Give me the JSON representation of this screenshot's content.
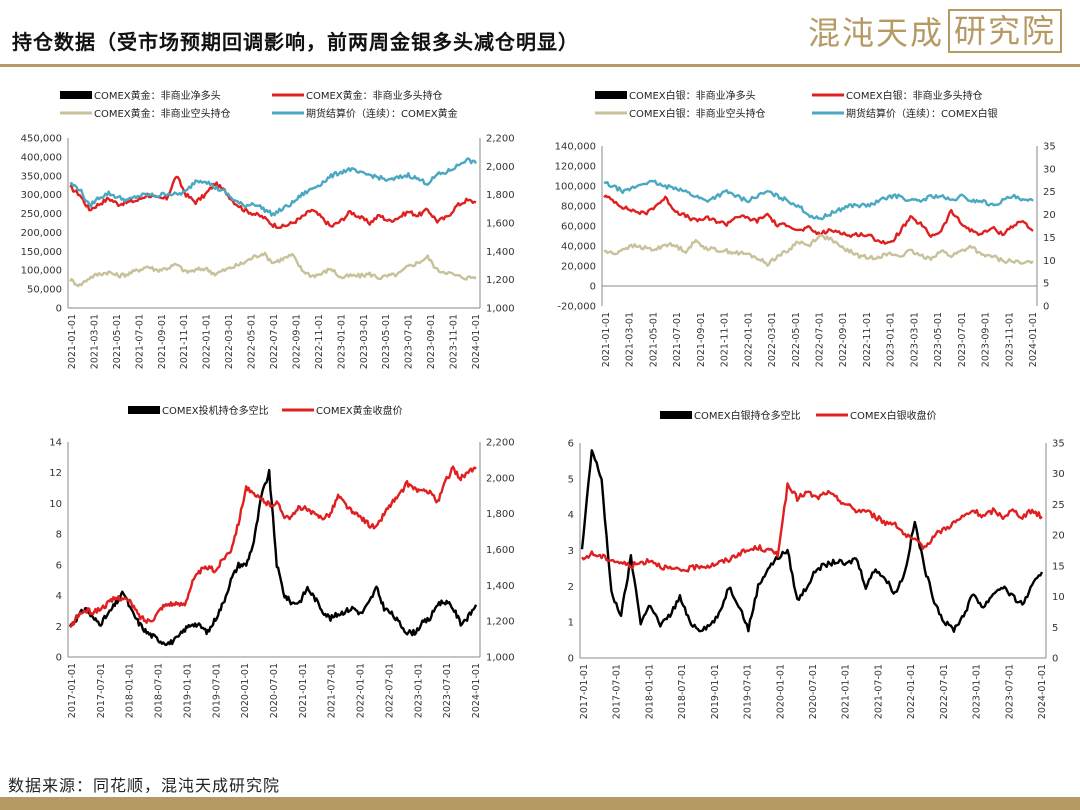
{
  "page": {
    "title": "持仓数据（受市场预期回调影响，前两周金银多头减仓明显）",
    "logo_part1": "混沌天成",
    "logo_part2": "研究院",
    "source": "数据来源：同花顺，混沌天成研究院",
    "accent_color": "#b59a63"
  },
  "chart_data": [
    {
      "type": "line",
      "legend": [
        "COMEX黄金：非商业净多头",
        "COMEX黄金：非商业多头持仓",
        "COMEX黄金：非商业空头持仓",
        "期货结算价（连续）：COMEX黄金"
      ],
      "colors": [
        "#000000",
        "#e02020",
        "#c8c29a",
        "#4aa8c0"
      ],
      "x_ticks": [
        "2021-01-01",
        "2021-03-01",
        "2021-05-01",
        "2021-07-01",
        "2021-09-01",
        "2021-11-01",
        "2022-01-01",
        "2022-03-01",
        "2022-05-01",
        "2022-07-01",
        "2022-09-01",
        "2022-11-01",
        "2023-01-01",
        "2023-03-01",
        "2023-05-01",
        "2023-07-01",
        "2023-09-01",
        "2023-11-01",
        "2024-01-01"
      ],
      "y_left": {
        "min": 0,
        "max": 450000,
        "ticks": [
          "0",
          "50,000",
          "100,000",
          "150,000",
          "200,000",
          "250,000",
          "300,000",
          "350,000",
          "400,000",
          "450,000"
        ]
      },
      "y_right": {
        "min": 1000,
        "max": 2200,
        "ticks": [
          "1,000",
          "1,200",
          "1,400",
          "1,600",
          "1,800",
          "2,000",
          "2,200"
        ]
      },
      "series": [
        {
          "name": "COMEX黄金：非商业多头持仓",
          "axis": "left",
          "values": [
            320000,
            300000,
            260000,
            275000,
            290000,
            275000,
            280000,
            285000,
            300000,
            290000,
            290000,
            350000,
            300000,
            280000,
            300000,
            330000,
            310000,
            280000,
            260000,
            250000,
            240000,
            220000,
            215000,
            225000,
            240000,
            260000,
            240000,
            215000,
            230000,
            255000,
            240000,
            225000,
            245000,
            230000,
            240000,
            255000,
            245000,
            260000,
            230000,
            240000,
            270000,
            285000,
            280000
          ]
        },
        {
          "name": "COMEX黄金：非商业空头持仓",
          "axis": "left",
          "values": [
            75000,
            60000,
            80000,
            90000,
            95000,
            85000,
            90000,
            100000,
            110000,
            100000,
            105000,
            115000,
            95000,
            100000,
            105000,
            90000,
            100000,
            110000,
            120000,
            135000,
            145000,
            120000,
            130000,
            140000,
            100000,
            85000,
            90000,
            105000,
            80000,
            85000,
            85000,
            90000,
            80000,
            85000,
            90000,
            110000,
            120000,
            135000,
            100000,
            95000,
            85000,
            80000,
            82000
          ]
        },
        {
          "name": "期货结算价（连续）：COMEX黄金",
          "axis": "right",
          "values": [
            1880,
            1840,
            1720,
            1780,
            1810,
            1780,
            1760,
            1790,
            1800,
            1790,
            1810,
            1800,
            1820,
            1900,
            1900,
            1850,
            1820,
            1760,
            1720,
            1740,
            1700,
            1660,
            1700,
            1740,
            1800,
            1840,
            1880,
            1930,
            1960,
            1980,
            1950,
            1940,
            1920,
            1900,
            1920,
            1940,
            1910,
            1880,
            1940,
            1960,
            2000,
            2050,
            2020
          ]
        }
      ]
    },
    {
      "type": "line",
      "legend": [
        "COMEX白银：非商业净多头",
        "COMEX白银：非商业多头持仓",
        "COMEX白银：非商业空头持仓",
        "期货结算价（连续）：COMEX白银"
      ],
      "colors": [
        "#000000",
        "#e02020",
        "#c8c29a",
        "#4aa8c0"
      ],
      "x_ticks": [
        "2021-01-01",
        "2021-03-01",
        "2021-05-01",
        "2021-07-01",
        "2021-09-01",
        "2021-11-01",
        "2022-01-01",
        "2022-03-01",
        "2022-05-01",
        "2022-07-01",
        "2022-09-01",
        "2022-11-01",
        "2023-01-01",
        "2023-03-01",
        "2023-05-01",
        "2023-07-01",
        "2023-09-01",
        "2023-11-01",
        "2024-01-01"
      ],
      "y_left": {
        "min": -20000,
        "max": 140000,
        "ticks": [
          "-20,000",
          "0",
          "20,000",
          "40,000",
          "60,000",
          "80,000",
          "100,000",
          "120,000",
          "140,000"
        ]
      },
      "y_right": {
        "min": 0,
        "max": 35,
        "ticks": [
          "0",
          "5",
          "10",
          "15",
          "20",
          "25",
          "30",
          "35"
        ]
      },
      "series": [
        {
          "name": "COMEX白银：非商业多头持仓",
          "axis": "left",
          "values": [
            90000,
            85000,
            78000,
            75000,
            72000,
            80000,
            88000,
            75000,
            70000,
            65000,
            68000,
            65000,
            62000,
            70000,
            68000,
            65000,
            72000,
            60000,
            62000,
            55000,
            58000,
            52000,
            55000,
            55000,
            50000,
            52000,
            50000,
            45000,
            42000,
            55000,
            68000,
            62000,
            50000,
            55000,
            75000,
            62000,
            55000,
            52000,
            58000,
            52000,
            60000,
            65000,
            55000
          ]
        },
        {
          "name": "COMEX白银：非商业空头持仓",
          "axis": "left",
          "values": [
            35000,
            32000,
            38000,
            40000,
            38000,
            36000,
            42000,
            40000,
            35000,
            45000,
            38000,
            36000,
            35000,
            33000,
            32000,
            28000,
            22000,
            30000,
            35000,
            45000,
            40000,
            50000,
            48000,
            40000,
            35000,
            30000,
            28000,
            30000,
            32000,
            30000,
            35000,
            30000,
            28000,
            35000,
            30000,
            35000,
            40000,
            30000,
            30000,
            25000,
            25000,
            22000,
            25000
          ]
        },
        {
          "name": "期货结算价（连续）：COMEX白银",
          "axis": "right",
          "values": [
            27,
            26,
            25,
            26,
            27,
            27,
            26,
            26,
            25,
            24,
            23,
            24,
            25,
            24,
            23,
            24,
            25,
            24,
            23,
            22,
            20,
            19,
            20,
            21,
            22,
            22,
            22,
            23,
            24,
            24,
            23,
            23,
            24,
            24,
            23,
            24,
            23,
            23,
            22,
            23,
            24,
            23,
            23
          ]
        }
      ]
    },
    {
      "type": "line",
      "legend": [
        "COMEX投机持仓多空比",
        "COMEX黄金收盘价"
      ],
      "colors": [
        "#000000",
        "#e02020"
      ],
      "x_ticks": [
        "2017-01-01",
        "2017-07-01",
        "2018-01-01",
        "2018-07-01",
        "2019-01-01",
        "2019-07-01",
        "2020-01-01",
        "2020-07-01",
        "2021-01-01",
        "2021-07-01",
        "2022-01-01",
        "2022-07-01",
        "2023-01-01",
        "2023-07-01",
        "2024-01-01"
      ],
      "y_left": {
        "min": 0,
        "max": 14,
        "ticks": [
          "0",
          "2",
          "4",
          "6",
          "8",
          "10",
          "12",
          "14"
        ]
      },
      "y_right": {
        "min": 1000,
        "max": 2200,
        "ticks": [
          "1,000",
          "1,200",
          "1,400",
          "1,600",
          "1,800",
          "2,000",
          "2,200"
        ]
      },
      "series": [
        {
          "name": "COMEX投机持仓多空比",
          "axis": "left",
          "values": [
            2.0,
            2.6,
            3.2,
            2.5,
            2.2,
            2.8,
            3.5,
            4.2,
            3.0,
            2.2,
            1.6,
            1.3,
            1.0,
            0.9,
            1.2,
            1.8,
            2.2,
            2.0,
            1.6,
            2.5,
            3.5,
            5.0,
            6.0,
            6.0,
            7.5,
            10.5,
            12.0,
            6.0,
            4.0,
            3.5,
            3.6,
            4.5,
            3.8,
            3.0,
            2.5,
            2.8,
            3.0,
            3.2,
            2.8,
            3.5,
            4.5,
            3.2,
            2.8,
            2.2,
            1.6,
            1.6,
            2.2,
            2.5,
            3.5,
            3.6,
            3.2,
            2.2,
            2.6,
            3.4
          ]
        },
        {
          "name": "COMEX黄金收盘价",
          "axis": "right",
          "values": [
            1160,
            1230,
            1260,
            1250,
            1270,
            1300,
            1330,
            1330,
            1300,
            1230,
            1200,
            1220,
            1280,
            1300,
            1290,
            1300,
            1420,
            1480,
            1500,
            1480,
            1550,
            1600,
            1750,
            1950,
            1900,
            1880,
            1850,
            1860,
            1790,
            1780,
            1840,
            1820,
            1790,
            1780,
            1800,
            1900,
            1850,
            1800,
            1780,
            1740,
            1720,
            1800,
            1860,
            1900,
            1970,
            1940,
            1920,
            1930,
            1860,
            1980,
            2050,
            2000,
            2030,
            2050
          ]
        }
      ]
    },
    {
      "type": "line",
      "legend": [
        "COMEX白银持仓多空比",
        "COMEX白银收盘价"
      ],
      "colors": [
        "#000000",
        "#e02020"
      ],
      "x_ticks": [
        "2017-01-01",
        "2017-07-01",
        "2018-01-01",
        "2018-07-01",
        "2019-01-01",
        "2019-07-01",
        "2020-01-01",
        "2020-07-01",
        "2021-01-01",
        "2021-07-01",
        "2022-01-01",
        "2022-07-01",
        "2023-01-01",
        "2023-07-01",
        "2024-01-01"
      ],
      "y_left": {
        "min": 0,
        "max": 6,
        "ticks": [
          "0",
          "1",
          "2",
          "3",
          "4",
          "5",
          "6"
        ]
      },
      "y_right": {
        "min": 0,
        "max": 35,
        "ticks": [
          "0",
          "5",
          "10",
          "15",
          "20",
          "25",
          "30",
          "35"
        ]
      },
      "series": [
        {
          "name": "COMEX白银持仓多空比",
          "axis": "left",
          "values": [
            3.0,
            5.8,
            5.0,
            1.8,
            1.2,
            2.8,
            1.0,
            1.5,
            0.9,
            1.2,
            1.7,
            1.0,
            0.8,
            0.9,
            1.2,
            2.0,
            1.5,
            0.8,
            2.0,
            2.5,
            2.8,
            3.0,
            1.6,
            2.0,
            2.5,
            2.6,
            2.7,
            2.6,
            2.8,
            2.0,
            2.5,
            2.2,
            1.8,
            2.4,
            3.8,
            2.5,
            1.6,
            1.0,
            0.8,
            1.2,
            1.8,
            1.4,
            1.8,
            2.0,
            1.7,
            1.5,
            2.0,
            2.4
          ]
        },
        {
          "name": "COMEX白银收盘价",
          "axis": "right",
          "values": [
            16,
            17,
            16.5,
            16,
            15.5,
            15,
            15.5,
            16,
            15,
            14.5,
            14.2,
            14.5,
            15,
            15,
            15.5,
            16,
            17,
            17.5,
            18,
            17.5,
            17,
            28,
            26,
            27,
            26,
            27,
            26,
            25,
            24,
            24,
            23,
            22,
            22,
            20,
            19,
            18,
            20,
            21,
            22,
            23,
            24,
            23,
            24,
            23,
            24,
            23,
            24,
            23
          ]
        }
      ]
    }
  ]
}
